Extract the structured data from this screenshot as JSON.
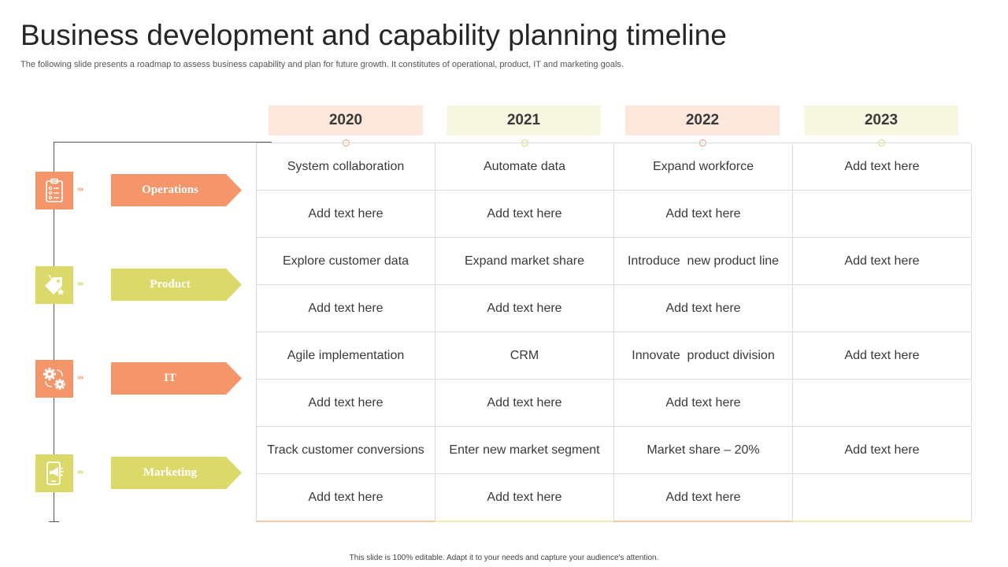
{
  "title": "Business development and capability planning timeline",
  "subtitle": "The following slide presents a roadmap to assess business capability and plan for future growth. It constitutes of operational, product, IT and marketing goals.",
  "footer": "This slide is 100% editable.  Adapt it to your needs and capture your audience's attention.",
  "colors": {
    "orange": "#f5956a",
    "yellow": "#dbd96a",
    "year_warm_bg": "#fce7dc",
    "year_cool_bg": "#f7f6e1"
  },
  "years": [
    "2020",
    "2021",
    "2022",
    "2023"
  ],
  "categories": [
    {
      "label": "Operations",
      "icon": "clipboard-checklist-icon",
      "color": "orange",
      "chevrons": "›››"
    },
    {
      "label": "Product",
      "icon": "price-tag-icon",
      "color": "yellow",
      "chevrons": "›››"
    },
    {
      "label": "IT",
      "icon": "gears-icon",
      "color": "orange",
      "chevrons": "›››"
    },
    {
      "label": "Marketing",
      "icon": "mobile-megaphone-icon",
      "color": "yellow",
      "chevrons": "›››"
    }
  ],
  "rows": [
    [
      "System collaboration",
      "Automate data",
      "Expand workforce",
      "Add text here"
    ],
    [
      "Add text here",
      "Add text here",
      "Add text here",
      ""
    ],
    [
      "Explore customer data",
      "Expand market share",
      "Introduce  new product line",
      "Add text here"
    ],
    [
      "Add text here",
      "Add text here",
      "Add text here",
      ""
    ],
    [
      "Agile implementation",
      "CRM",
      "Innovate  product division",
      "Add text here"
    ],
    [
      "Add text here",
      "Add text here",
      "Add text here",
      ""
    ],
    [
      "Track customer conversions",
      "Enter new market segment",
      "Market share – 20%",
      "Add text here"
    ],
    [
      "Add text here",
      "Add text here",
      "Add text here",
      ""
    ]
  ]
}
